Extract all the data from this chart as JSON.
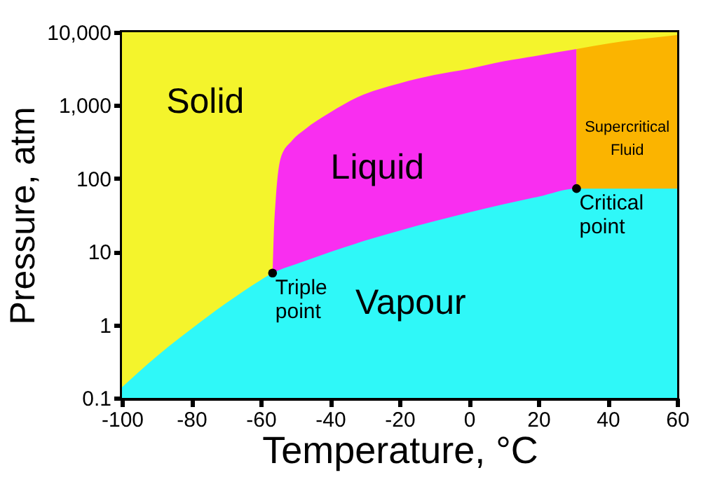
{
  "chart_data": {
    "type": "area",
    "xlabel": "Temperature, °C",
    "ylabel": "Pressure, atm",
    "log": "y",
    "legend": false,
    "grid": false,
    "xlim": [
      -100,
      60
    ],
    "xticks": [
      -100,
      -80,
      -60,
      -40,
      -20,
      0,
      20,
      40,
      60
    ],
    "ylim": [
      0.1,
      10000
    ],
    "yticks": [
      0.1,
      1,
      10,
      100,
      {
        "value": 1000,
        "label": "1,000"
      },
      {
        "value": 10000,
        "label": "10,000"
      }
    ],
    "series": [
      {
        "name": "Solid",
        "color": "#f4f42c",
        "x": [
          -100,
          60
        ],
        "values": [
          10000,
          10000
        ]
      },
      {
        "name": "Liquid",
        "color": "#f92ef0",
        "x": [
          -56.6,
          -56.2,
          -55.7,
          -54.2,
          -51,
          -47.3,
          -40,
          -32,
          -20,
          -10,
          0,
          10,
          20,
          31
        ],
        "values": [
          5.1,
          20,
          51,
          194,
          330,
          470,
          800,
          1300,
          2000,
          2600,
          3160,
          4000,
          4800,
          5880
        ]
      },
      {
        "name": "Supercritical Fluid",
        "color": "#fbb400",
        "x": [
          31,
          40,
          50,
          60
        ],
        "values": [
          5880,
          7000,
          8100,
          9150
        ]
      },
      {
        "name": "Vapour",
        "color": "#2ff8f8",
        "x": [
          -100,
          -90,
          -80,
          -70,
          -60,
          -56.6,
          -50,
          -40,
          -30,
          -20,
          -10,
          0,
          10,
          20,
          31,
          40,
          50,
          60
        ],
        "values": [
          0.14,
          0.37,
          0.88,
          1.97,
          4.1,
          5.1,
          6.7,
          9.9,
          14.1,
          19.4,
          26.1,
          34.4,
          44.4,
          56.5,
          72.9,
          72.9,
          72.9,
          72.9
        ]
      }
    ],
    "annotations": [
      {
        "text": "Triple point",
        "x": -56.6,
        "y": 5.1
      },
      {
        "text": "Critical point",
        "x": 31,
        "y": 72.9
      }
    ]
  }
}
